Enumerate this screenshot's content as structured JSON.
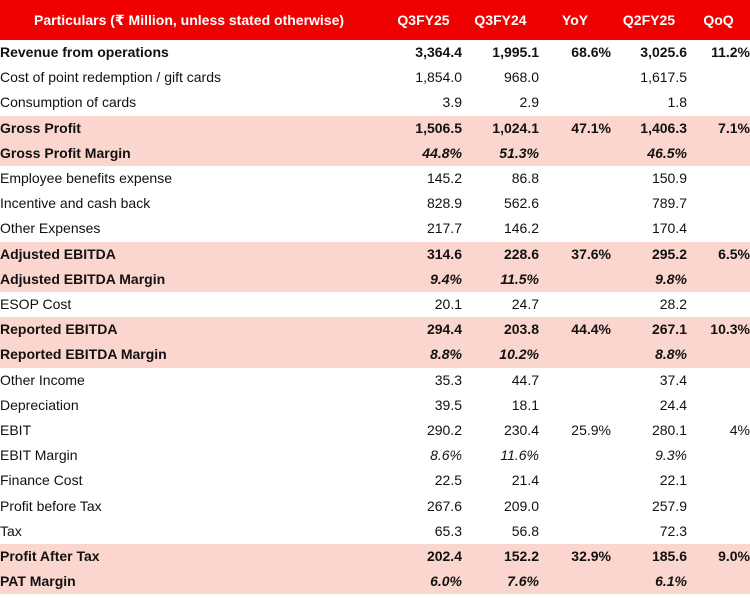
{
  "table": {
    "headers": [
      "Particulars (₹ Million, unless stated otherwise)",
      "Q3FY25",
      "Q3FY24",
      "YoY",
      "Q2FY25",
      "QoQ"
    ],
    "rows": [
      {
        "label": "Revenue from operations",
        "q3fy25": "3,364.4",
        "q3fy24": "1,995.1",
        "yoy": "68.6%",
        "q2fy25": "3,025.6",
        "qoq": "11.2%",
        "style": "bold"
      },
      {
        "label": "Cost of point redemption / gift cards",
        "q3fy25": "1,854.0",
        "q3fy24": "968.0",
        "yoy": "",
        "q2fy25": "1,617.5",
        "qoq": "",
        "style": "plain"
      },
      {
        "label": "Consumption of cards",
        "q3fy25": "3.9",
        "q3fy24": "2.9",
        "yoy": "",
        "q2fy25": "1.8",
        "qoq": "",
        "style": "plain"
      },
      {
        "label": "Gross Profit",
        "q3fy25": "1,506.5",
        "q3fy24": "1,024.1",
        "yoy": "47.1%",
        "q2fy25": "1,406.3",
        "qoq": "7.1%",
        "style": "hl"
      },
      {
        "label": "Gross Profit Margin",
        "q3fy25": "44.8%",
        "q3fy24": "51.3%",
        "yoy": "",
        "q2fy25": "46.5%",
        "qoq": "",
        "style": "hl-italic"
      },
      {
        "label": "Employee benefits expense",
        "q3fy25": "145.2",
        "q3fy24": "86.8",
        "yoy": "",
        "q2fy25": "150.9",
        "qoq": "",
        "style": "plain"
      },
      {
        "label": "Incentive and cash back",
        "q3fy25": "828.9",
        "q3fy24": "562.6",
        "yoy": "",
        "q2fy25": "789.7",
        "qoq": "",
        "style": "plain"
      },
      {
        "label": "Other Expenses",
        "q3fy25": "217.7",
        "q3fy24": "146.2",
        "yoy": "",
        "q2fy25": "170.4",
        "qoq": "",
        "style": "plain"
      },
      {
        "label": "Adjusted EBITDA",
        "q3fy25": "314.6",
        "q3fy24": "228.6",
        "yoy": "37.6%",
        "q2fy25": "295.2",
        "qoq": "6.5%",
        "style": "hl"
      },
      {
        "label": "Adjusted EBITDA Margin",
        "q3fy25": "9.4%",
        "q3fy24": "11.5%",
        "yoy": "",
        "q2fy25": "9.8%",
        "qoq": "",
        "style": "hl-italic"
      },
      {
        "label": "ESOP Cost",
        "q3fy25": "20.1",
        "q3fy24": "24.7",
        "yoy": "",
        "q2fy25": "28.2",
        "qoq": "",
        "style": "plain"
      },
      {
        "label": "Reported EBITDA",
        "q3fy25": "294.4",
        "q3fy24": "203.8",
        "yoy": "44.4%",
        "q2fy25": "267.1",
        "qoq": "10.3%",
        "style": "hl"
      },
      {
        "label": "Reported EBITDA Margin",
        "q3fy25": "8.8%",
        "q3fy24": "10.2%",
        "yoy": "",
        "q2fy25": "8.8%",
        "qoq": "",
        "style": "hl-italic"
      },
      {
        "label": "Other Income",
        "q3fy25": "35.3",
        "q3fy24": "44.7",
        "yoy": "",
        "q2fy25": "37.4",
        "qoq": "",
        "style": "plain"
      },
      {
        "label": "Depreciation",
        "q3fy25": "39.5",
        "q3fy24": "18.1",
        "yoy": "",
        "q2fy25": "24.4",
        "qoq": "",
        "style": "plain"
      },
      {
        "label": "EBIT",
        "q3fy25": "290.2",
        "q3fy24": "230.4",
        "yoy": "25.9%",
        "q2fy25": "280.1",
        "qoq": "4%",
        "style": "plain"
      },
      {
        "label": "EBIT Margin",
        "q3fy25": "8.6%",
        "q3fy24": "11.6%",
        "yoy": "",
        "q2fy25": "9.3%",
        "qoq": "",
        "style": "plain-italic"
      },
      {
        "label": "Finance Cost",
        "q3fy25": "22.5",
        "q3fy24": "21.4",
        "yoy": "",
        "q2fy25": "22.1",
        "qoq": "",
        "style": "plain"
      },
      {
        "label": "Profit before  Tax",
        "q3fy25": "267.6",
        "q3fy24": "209.0",
        "yoy": "",
        "q2fy25": "257.9",
        "qoq": "",
        "style": "plain"
      },
      {
        "label": "Tax",
        "q3fy25": "65.3",
        "q3fy24": "56.8",
        "yoy": "",
        "q2fy25": "72.3",
        "qoq": "",
        "style": "plain"
      },
      {
        "label": "Profit After Tax",
        "q3fy25": "202.4",
        "q3fy24": "152.2",
        "yoy": "32.9%",
        "q2fy25": "185.6",
        "qoq": "9.0%",
        "style": "hl"
      },
      {
        "label": "PAT Margin",
        "q3fy25": "6.0%",
        "q3fy24": "7.6%",
        "yoy": "",
        "q2fy25": "6.1%",
        "qoq": "",
        "style": "hl-italic"
      }
    ]
  },
  "colors": {
    "header_bg": "#f00000",
    "highlight_bg": "#fbd6ce"
  }
}
